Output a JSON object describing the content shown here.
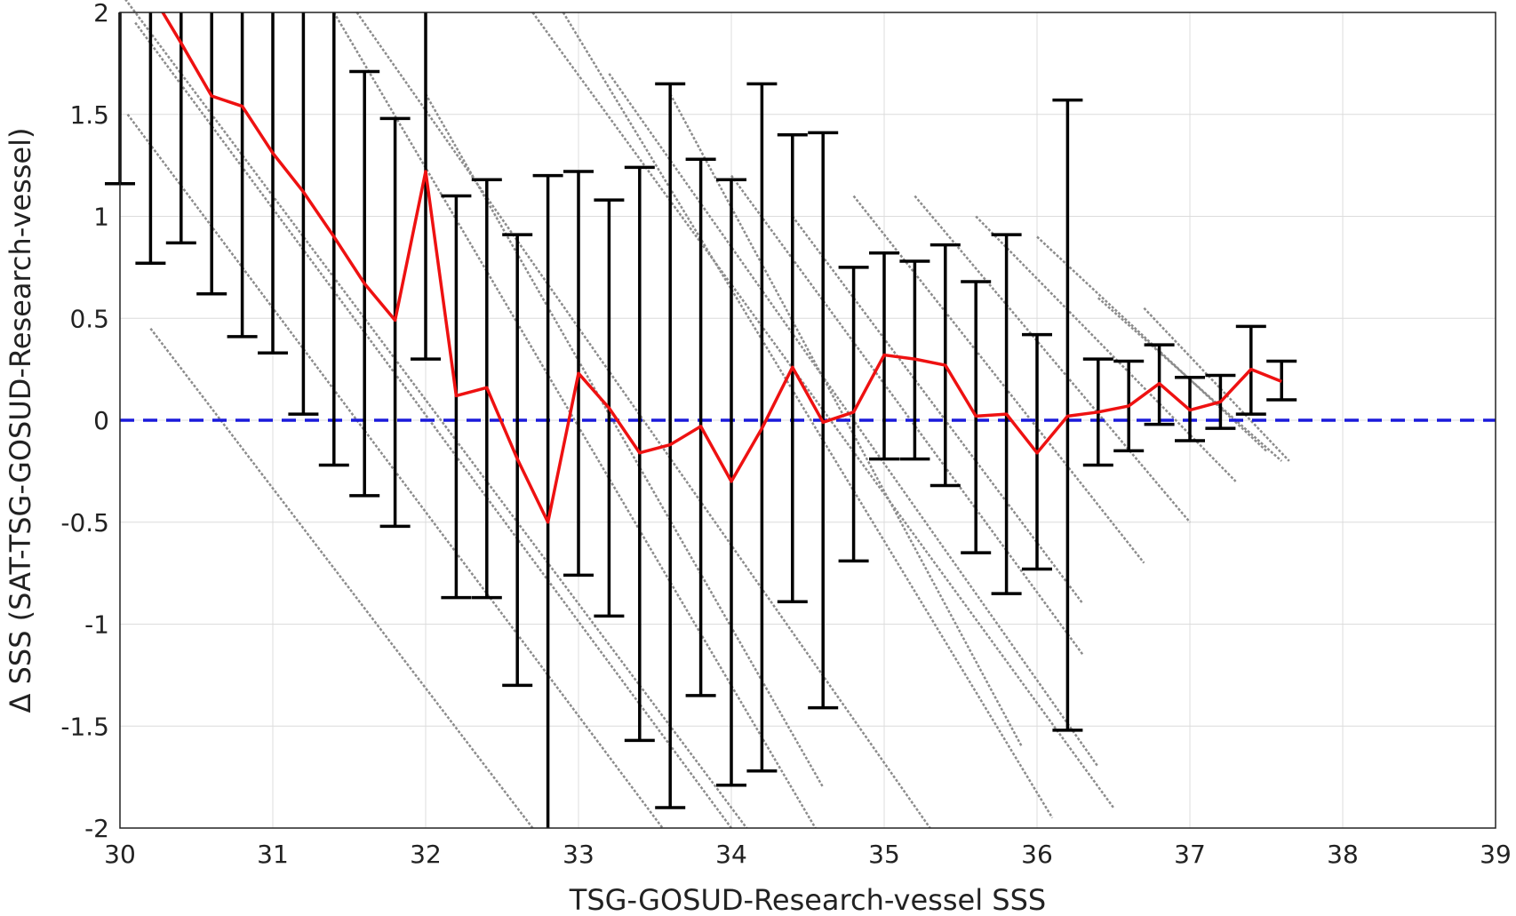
{
  "chart_data": {
    "type": "line",
    "xlabel": "TSG-GOSUD-Research-vessel SSS",
    "ylabel": "Δ SSS (SAT-TSG-GOSUD-Research-vessel)",
    "xlim": [
      30,
      39
    ],
    "ylim": [
      -2,
      2
    ],
    "grid": true,
    "xticks": [
      30,
      31,
      32,
      33,
      34,
      35,
      36,
      37,
      38,
      39
    ],
    "yticks": [
      -2,
      -1.5,
      -1,
      -0.5,
      0,
      0.5,
      1,
      1.5,
      2
    ],
    "xtick_labels": [
      "30",
      "31",
      "32",
      "33",
      "34",
      "35",
      "36",
      "37",
      "38",
      "39"
    ],
    "ytick_labels": [
      "-2",
      "-1.5",
      "-1",
      "-0.5",
      "0",
      "0.5",
      "1",
      "1.5",
      "2"
    ],
    "zero_line": {
      "y": 0,
      "color": "#1a1adb",
      "style": "dashed"
    },
    "mean_line": {
      "color": "#ee1111",
      "x": [
        30.2,
        30.4,
        30.6,
        30.8,
        31.0,
        31.2,
        31.4,
        31.6,
        31.8,
        32.0,
        32.2,
        32.4,
        32.6,
        32.8,
        33.0,
        33.2,
        33.4,
        33.6,
        33.8,
        34.0,
        34.2,
        34.4,
        34.6,
        34.8,
        35.0,
        35.2,
        35.4,
        35.6,
        35.8,
        36.0,
        36.2,
        36.4,
        36.6,
        36.8,
        37.0,
        37.2,
        37.4,
        37.6
      ],
      "y": [
        2.1,
        1.85,
        1.59,
        1.54,
        1.31,
        1.12,
        0.9,
        0.67,
        0.49,
        1.22,
        0.12,
        0.16,
        -0.19,
        -0.5,
        0.23,
        0.06,
        -0.16,
        -0.12,
        -0.03,
        -0.3,
        -0.04,
        0.26,
        -0.01,
        0.04,
        0.32,
        0.3,
        0.27,
        0.02,
        0.03,
        -0.16,
        0.02,
        0.04,
        0.07,
        0.18,
        0.05,
        0.09,
        0.25,
        0.19
      ]
    },
    "error_bars": {
      "color": "#000000",
      "x": [
        30.0,
        30.2,
        30.4,
        30.6,
        30.8,
        31.0,
        31.2,
        31.4,
        31.6,
        31.8,
        32.0,
        32.2,
        32.4,
        32.6,
        32.8,
        33.0,
        33.2,
        33.4,
        33.6,
        33.8,
        34.0,
        34.2,
        34.4,
        34.6,
        34.8,
        35.0,
        35.2,
        35.4,
        35.6,
        35.8,
        36.0,
        36.2,
        36.4,
        36.6,
        36.8,
        37.0,
        37.2,
        37.4,
        37.6
      ],
      "low": [
        1.16,
        0.77,
        0.87,
        0.62,
        0.41,
        0.33,
        0.03,
        -0.22,
        -0.37,
        -0.52,
        0.3,
        -0.87,
        -0.87,
        -1.3,
        -2.0,
        -0.76,
        -0.96,
        -1.57,
        -1.9,
        -1.35,
        -1.79,
        -1.72,
        -0.89,
        -1.41,
        -0.69,
        -0.19,
        -0.19,
        -0.32,
        -0.65,
        -0.85,
        -0.73,
        -1.52,
        -0.22,
        -0.15,
        -0.02,
        -0.1,
        -0.04,
        0.03,
        0.1
      ],
      "high": [
        2.0,
        2.0,
        2.0,
        2.0,
        2.0,
        2.0,
        2.0,
        2.0,
        1.71,
        1.48,
        2.0,
        1.1,
        1.18,
        0.91,
        1.2,
        1.22,
        1.08,
        1.24,
        1.65,
        1.28,
        1.18,
        1.65,
        1.4,
        1.41,
        0.75,
        0.82,
        0.78,
        0.86,
        0.68,
        0.91,
        0.42,
        1.57,
        0.3,
        0.29,
        0.37,
        0.21,
        0.22,
        0.46,
        0.29
      ]
    },
    "scatter": {
      "color": "#8c8c8c",
      "description_segments": [
        [
          30.0,
          2.1,
          34.1,
          -2.0
        ],
        [
          30.1,
          1.95,
          34.0,
          -2.0
        ],
        [
          30.05,
          1.5,
          33.55,
          -2.0
        ],
        [
          30.2,
          0.45,
          32.7,
          -2.0
        ],
        [
          31.4,
          2.0,
          34.55,
          -2.0
        ],
        [
          31.55,
          2.0,
          35.3,
          -2.0
        ],
        [
          32.0,
          1.6,
          34.6,
          -1.8
        ],
        [
          32.7,
          2.0,
          36.5,
          -1.9
        ],
        [
          32.9,
          2.0,
          36.1,
          -1.95
        ],
        [
          33.2,
          1.7,
          36.4,
          -1.7
        ],
        [
          33.6,
          1.6,
          35.9,
          -1.6
        ],
        [
          34.0,
          1.2,
          36.3,
          -1.15
        ],
        [
          34.4,
          1.0,
          36.3,
          -0.9
        ],
        [
          34.8,
          1.1,
          36.7,
          -0.7
        ],
        [
          35.2,
          1.1,
          37.0,
          -0.5
        ],
        [
          35.6,
          1.0,
          37.3,
          -0.3
        ],
        [
          36.0,
          0.9,
          37.5,
          -0.15
        ],
        [
          36.4,
          0.6,
          37.6,
          -0.2
        ],
        [
          36.7,
          0.55,
          37.65,
          -0.2
        ]
      ]
    }
  }
}
